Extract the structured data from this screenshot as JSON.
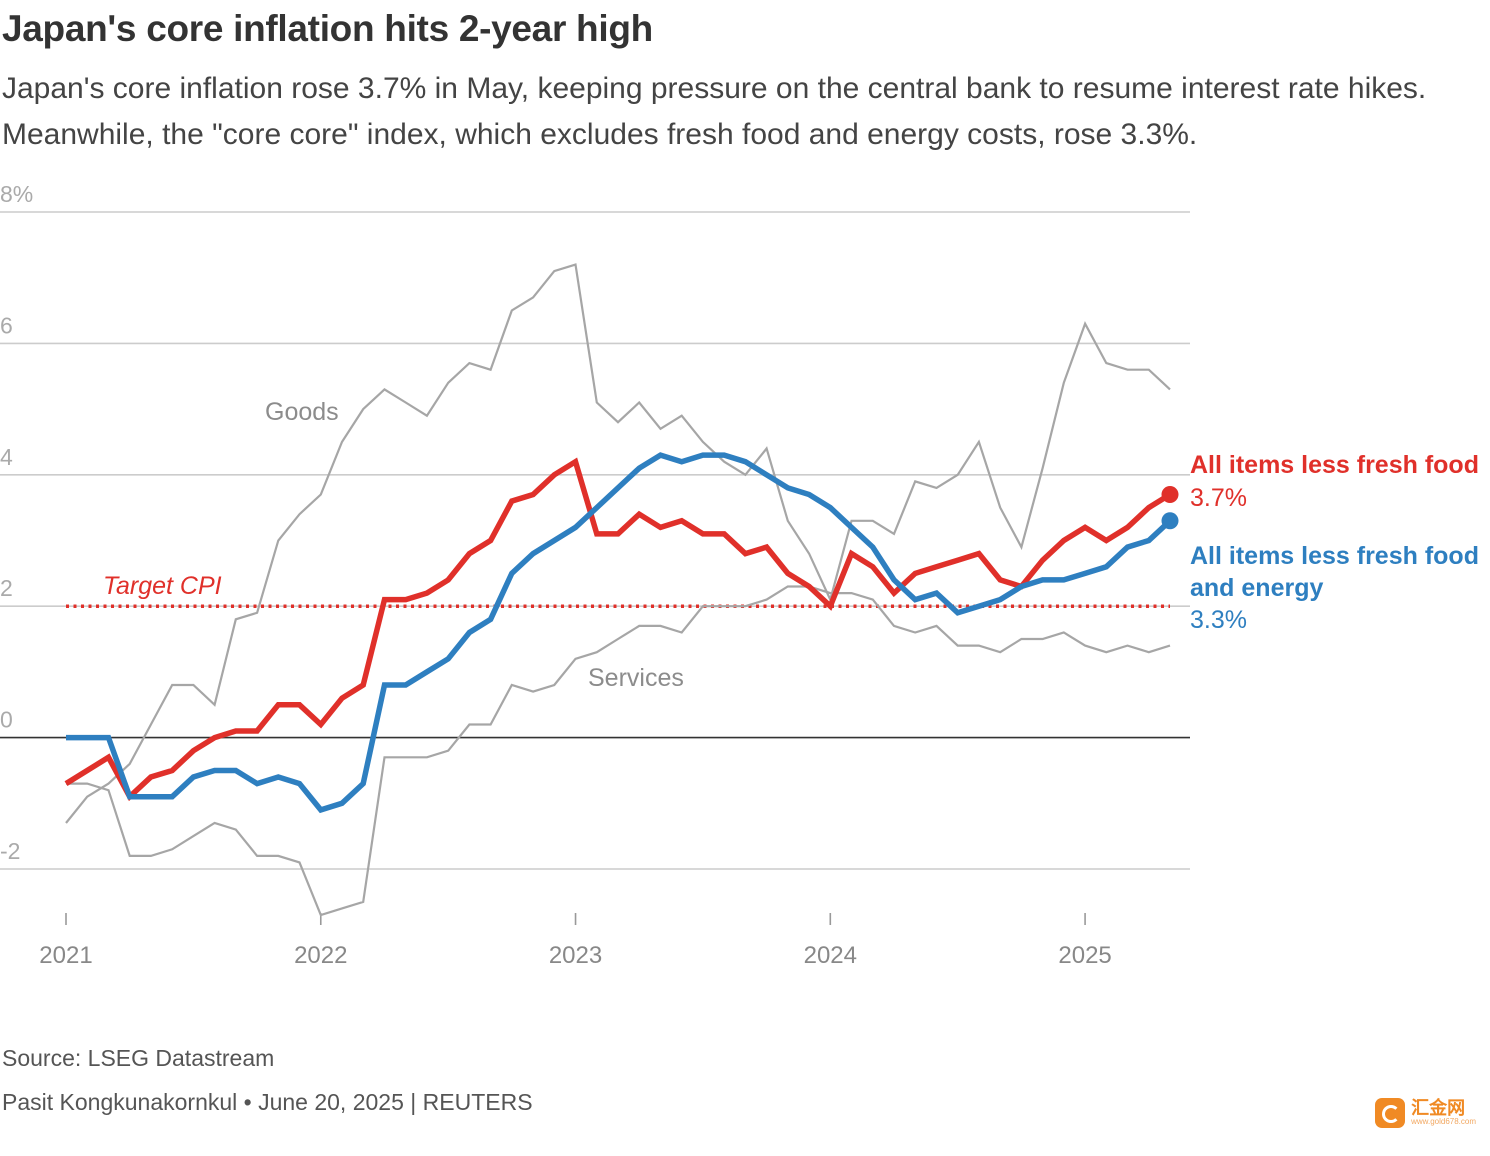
{
  "header": {
    "title": "Japan's core inflation hits 2-year high",
    "subtitle": "Japan's core inflation rose 3.7% in May, keeping pressure on the central bank to resume interest rate hikes. Meanwhile, the \"core core\" index, which excludes fresh food and energy costs, rose 3.3%."
  },
  "chart_data": {
    "type": "line",
    "title": "Japan's core inflation hits 2-year high",
    "ylim": [
      -3,
      8
    ],
    "y_ticks": [
      {
        "value": 8,
        "label": "8%"
      },
      {
        "value": 6,
        "label": "6"
      },
      {
        "value": 4,
        "label": "4"
      },
      {
        "value": 2,
        "label": "2"
      },
      {
        "value": 0,
        "label": "0"
      },
      {
        "value": -2,
        "label": "-2"
      }
    ],
    "x_range": [
      "2021-01",
      "2025-05"
    ],
    "x_ticks": [
      "2021",
      "2022",
      "2023",
      "2024",
      "2025"
    ],
    "grid": true,
    "target": {
      "label": "Target CPI",
      "value": 2,
      "color": "#e0302a"
    },
    "x": [
      "2021-01",
      "2021-02",
      "2021-03",
      "2021-04",
      "2021-05",
      "2021-06",
      "2021-07",
      "2021-08",
      "2021-09",
      "2021-10",
      "2021-11",
      "2021-12",
      "2022-01",
      "2022-02",
      "2022-03",
      "2022-04",
      "2022-05",
      "2022-06",
      "2022-07",
      "2022-08",
      "2022-09",
      "2022-10",
      "2022-11",
      "2022-12",
      "2023-01",
      "2023-02",
      "2023-03",
      "2023-04",
      "2023-05",
      "2023-06",
      "2023-07",
      "2023-08",
      "2023-09",
      "2023-10",
      "2023-11",
      "2023-12",
      "2024-01",
      "2024-02",
      "2024-03",
      "2024-04",
      "2024-05",
      "2024-06",
      "2024-07",
      "2024-08",
      "2024-09",
      "2024-10",
      "2024-11",
      "2024-12",
      "2025-01",
      "2025-02",
      "2025-03",
      "2025-04",
      "2025-05"
    ],
    "series": [
      {
        "name": "Goods",
        "color": "#a6a6a6",
        "width": 2.2,
        "values": [
          -1.3,
          -0.9,
          -0.7,
          -0.4,
          0.2,
          0.8,
          0.8,
          0.5,
          1.8,
          1.9,
          3.0,
          3.4,
          3.7,
          4.5,
          5.0,
          5.3,
          5.1,
          4.9,
          5.4,
          5.7,
          5.6,
          6.5,
          6.7,
          7.1,
          7.2,
          5.1,
          4.8,
          5.1,
          4.7,
          4.9,
          4.5,
          4.2,
          4.0,
          4.4,
          3.3,
          2.8,
          2.1,
          3.3,
          3.3,
          3.1,
          3.9,
          3.8,
          4.0,
          4.5,
          3.5,
          2.9,
          4.1,
          5.4,
          6.3,
          5.7,
          5.6,
          5.6,
          5.3
        ]
      },
      {
        "name": "Services",
        "color": "#a6a6a6",
        "width": 2.2,
        "values": [
          -0.7,
          -0.7,
          -0.8,
          -1.8,
          -1.8,
          -1.7,
          -1.5,
          -1.3,
          -1.4,
          -1.8,
          -1.8,
          -1.9,
          -2.7,
          -2.6,
          -2.5,
          -0.3,
          -0.3,
          -0.3,
          -0.2,
          0.2,
          0.2,
          0.8,
          0.7,
          0.8,
          1.2,
          1.3,
          1.5,
          1.7,
          1.7,
          1.6,
          2.0,
          2.0,
          2.0,
          2.1,
          2.3,
          2.3,
          2.2,
          2.2,
          2.1,
          1.7,
          1.6,
          1.7,
          1.4,
          1.4,
          1.3,
          1.5,
          1.5,
          1.6,
          1.4,
          1.3,
          1.4,
          1.3,
          1.4
        ]
      },
      {
        "name": "All items less fresh food",
        "label": "All items less fresh food",
        "value_label": "3.7%",
        "color": "#e0302a",
        "width": 5.5,
        "values": [
          -0.7,
          -0.5,
          -0.3,
          -0.9,
          -0.6,
          -0.5,
          -0.2,
          0.0,
          0.1,
          0.1,
          0.5,
          0.5,
          0.2,
          0.6,
          0.8,
          2.1,
          2.1,
          2.2,
          2.4,
          2.8,
          3.0,
          3.6,
          3.7,
          4.0,
          4.2,
          3.1,
          3.1,
          3.4,
          3.2,
          3.3,
          3.1,
          3.1,
          2.8,
          2.9,
          2.5,
          2.3,
          2.0,
          2.8,
          2.6,
          2.2,
          2.5,
          2.6,
          2.7,
          2.8,
          2.4,
          2.3,
          2.7,
          3.0,
          3.2,
          3.0,
          3.2,
          3.5,
          3.7
        ]
      },
      {
        "name": "All items less fresh food and energy",
        "label": "All items less fresh food and energy",
        "value_label": "3.3%",
        "color": "#2e7fc0",
        "width": 5.5,
        "values": [
          0.0,
          0.0,
          0.0,
          -0.9,
          -0.9,
          -0.9,
          -0.6,
          -0.5,
          -0.5,
          -0.7,
          -0.6,
          -0.7,
          -1.1,
          -1.0,
          -0.7,
          0.8,
          0.8,
          1.0,
          1.2,
          1.6,
          1.8,
          2.5,
          2.8,
          3.0,
          3.2,
          3.5,
          3.8,
          4.1,
          4.3,
          4.2,
          4.3,
          4.3,
          4.2,
          4.0,
          3.8,
          3.7,
          3.5,
          3.2,
          2.9,
          2.4,
          2.1,
          2.2,
          1.9,
          2.0,
          2.1,
          2.3,
          2.4,
          2.4,
          2.5,
          2.6,
          2.9,
          3.0,
          3.3
        ]
      }
    ]
  },
  "footer": {
    "source": "Source: LSEG Datastream",
    "byline": "Pasit Kongkunakornkul • June 20, 2025 | REUTERS"
  },
  "watermark": {
    "text": "汇金网",
    "sub": "www.gold678.com",
    "color": "#f08a24"
  }
}
